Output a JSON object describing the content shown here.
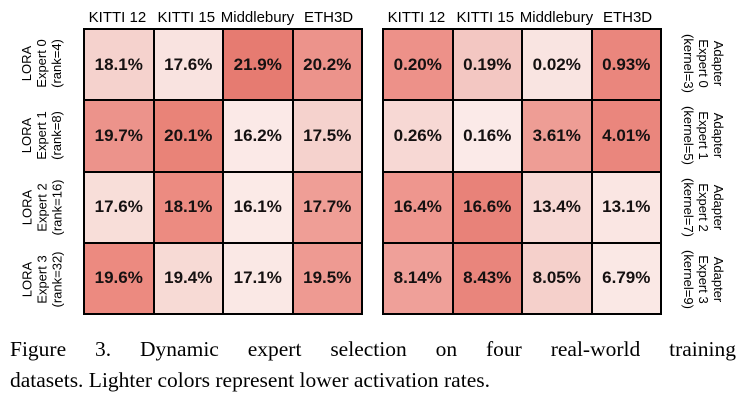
{
  "figure": {
    "heatmaps": [
      {
        "side": "left",
        "col_headers": [
          "KITTI 12",
          "KITTI 15",
          "Middlebury",
          "ETH3D"
        ],
        "row_labels": [
          [
            "LORA",
            "Expert 0",
            "(rank=4)"
          ],
          [
            "LORA",
            "Expert 1",
            "(rank=8)"
          ],
          [
            "LORA",
            "Expert 2",
            "(rank=16)"
          ],
          [
            "LORA",
            "Expert 3",
            "(rank=32)"
          ]
        ],
        "cells": [
          [
            {
              "v": "18.1%",
              "bg": "#f5d2cd"
            },
            {
              "v": "17.6%",
              "bg": "#f9e3e0"
            },
            {
              "v": "21.9%",
              "bg": "#e67b71"
            },
            {
              "v": "20.2%",
              "bg": "#ec938b"
            }
          ],
          [
            {
              "v": "19.7%",
              "bg": "#ec938b"
            },
            {
              "v": "20.1%",
              "bg": "#e98378"
            },
            {
              "v": "16.2%",
              "bg": "#fbe9e7"
            },
            {
              "v": "17.5%",
              "bg": "#f5d2cd"
            }
          ],
          [
            {
              "v": "17.6%",
              "bg": "#f8ded9"
            },
            {
              "v": "18.1%",
              "bg": "#ec8b81"
            },
            {
              "v": "16.1%",
              "bg": "#fbeae7"
            },
            {
              "v": "17.7%",
              "bg": "#ef9e96"
            }
          ],
          [
            {
              "v": "19.6%",
              "bg": "#ec8a80"
            },
            {
              "v": "19.4%",
              "bg": "#f7dad5"
            },
            {
              "v": "17.1%",
              "bg": "#fae8e5"
            },
            {
              "v": "19.5%",
              "bg": "#ee9a92"
            }
          ]
        ]
      },
      {
        "side": "right",
        "col_headers": [
          "KITTI 12",
          "KITTI 15",
          "Middlebury",
          "ETH3D"
        ],
        "row_labels": [
          [
            "Adapter",
            "Expert 0",
            "(kernel=3)"
          ],
          [
            "Adapter",
            "Expert 1",
            "(kernel=5)"
          ],
          [
            "Adapter",
            "Expert 2",
            "(kernel=7)"
          ],
          [
            "Adapter",
            "Expert 3",
            "(kernel=9)"
          ]
        ],
        "cells": [
          [
            {
              "v": "0.20%",
              "bg": "#ed9189"
            },
            {
              "v": "0.19%",
              "bg": "#f3c7c2"
            },
            {
              "v": "0.02%",
              "bg": "#f9e4e1"
            },
            {
              "v": "0.93%",
              "bg": "#ea867d"
            }
          ],
          [
            {
              "v": "0.26%",
              "bg": "#f7d8d4"
            },
            {
              "v": "0.16%",
              "bg": "#fbeae8"
            },
            {
              "v": "3.61%",
              "bg": "#ee9d95"
            },
            {
              "v": "4.01%",
              "bg": "#ea867d"
            }
          ],
          [
            {
              "v": "16.4%",
              "bg": "#ee968e"
            },
            {
              "v": "16.6%",
              "bg": "#e88279"
            },
            {
              "v": "13.4%",
              "bg": "#f7d9d5"
            },
            {
              "v": "13.1%",
              "bg": "#fae6e3"
            }
          ],
          [
            {
              "v": "8.14%",
              "bg": "#efa099"
            },
            {
              "v": "8.43%",
              "bg": "#e9857c"
            },
            {
              "v": "8.05%",
              "bg": "#f5d0cb"
            },
            {
              "v": "6.79%",
              "bg": "#fae8e5"
            }
          ]
        ]
      }
    ],
    "caption": {
      "line1": "Figure 3.  Dynamic expert selection on four real-world training",
      "line2": "datasets. Lighter colors represent lower activation rates."
    }
  },
  "chart_data": [
    {
      "type": "heatmap",
      "x_labels": [
        "KITTI 12",
        "KITTI 15",
        "Middlebury",
        "ETH3D"
      ],
      "y_labels": [
        "LORA Expert 0 (rank=4)",
        "LORA Expert 1 (rank=8)",
        "LORA Expert 2 (rank=16)",
        "LORA Expert 3 (rank=32)"
      ],
      "values_percent": [
        [
          18.1,
          17.6,
          21.9,
          20.2
        ],
        [
          19.7,
          20.1,
          16.2,
          17.5
        ],
        [
          17.6,
          18.1,
          16.1,
          17.7
        ],
        [
          19.6,
          19.4,
          17.1,
          19.5
        ]
      ],
      "colormap": "reds, lighter = lower activation rate",
      "grid": true,
      "legend": false
    },
    {
      "type": "heatmap",
      "x_labels": [
        "KITTI 12",
        "KITTI 15",
        "Middlebury",
        "ETH3D"
      ],
      "y_labels": [
        "Adapter Expert 0 (kernel=3)",
        "Adapter Expert 1 (kernel=5)",
        "Adapter Expert 2 (kernel=7)",
        "Adapter Expert 3 (kernel=9)"
      ],
      "values_percent": [
        [
          0.2,
          0.19,
          0.02,
          0.93
        ],
        [
          0.26,
          0.16,
          3.61,
          4.01
        ],
        [
          16.4,
          16.6,
          13.4,
          13.1
        ],
        [
          8.14,
          8.43,
          8.05,
          6.79
        ]
      ],
      "colormap": "reds, lighter = lower activation rate",
      "grid": true,
      "legend": false
    }
  ]
}
